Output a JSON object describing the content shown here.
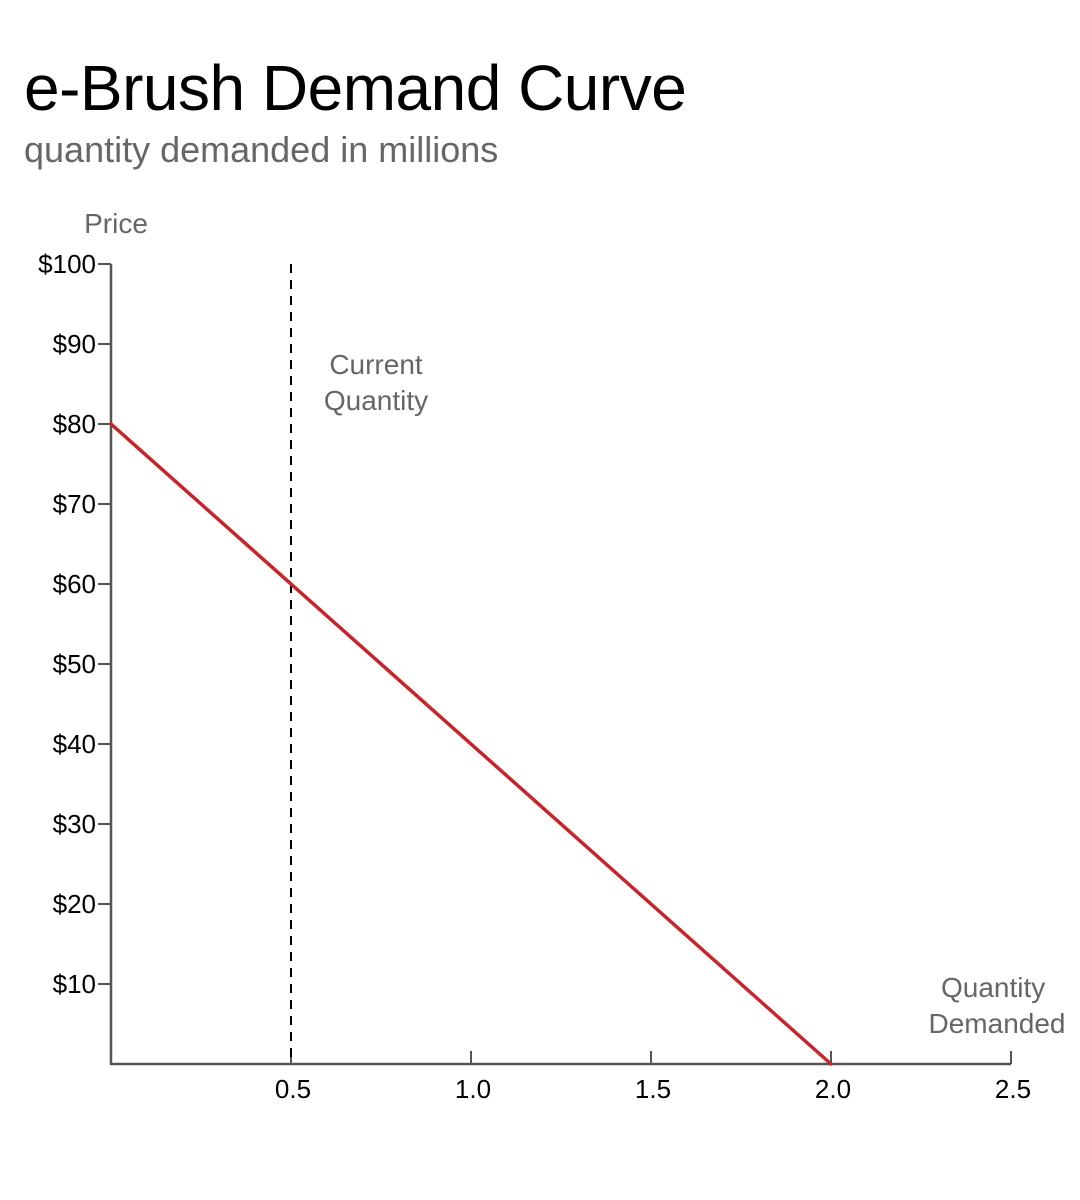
{
  "chart_data": {
    "type": "line",
    "title": "e-Brush Demand Curve",
    "subtitle": "quantity demanded in millions",
    "ylabel": "Price",
    "xlabel": [
      "Quantity",
      "Demanded"
    ],
    "xlim": [
      0,
      2.5
    ],
    "ylim": [
      0,
      100
    ],
    "x_ticks": [
      0.5,
      1.0,
      1.5,
      2.0,
      2.5
    ],
    "x_tick_labels": [
      "0.5",
      "1.0",
      "1.5",
      "2.0",
      "2.5"
    ],
    "y_ticks": [
      10,
      20,
      30,
      40,
      50,
      60,
      70,
      80,
      90,
      100
    ],
    "y_tick_labels": [
      "$10",
      "$20",
      "$30",
      "$40",
      "$50",
      "$60",
      "$70",
      "$80",
      "$90",
      "$100"
    ],
    "grid": false,
    "series": [
      {
        "x": [
          0,
          2.0
        ],
        "y": [
          80,
          0
        ],
        "color": "#c1272d"
      }
    ],
    "reference_lines": [
      {
        "orientation": "vertical",
        "x": 0.5,
        "style": "dashed",
        "color": "#000000",
        "label": [
          "Current",
          "Quantity"
        ]
      }
    ]
  }
}
